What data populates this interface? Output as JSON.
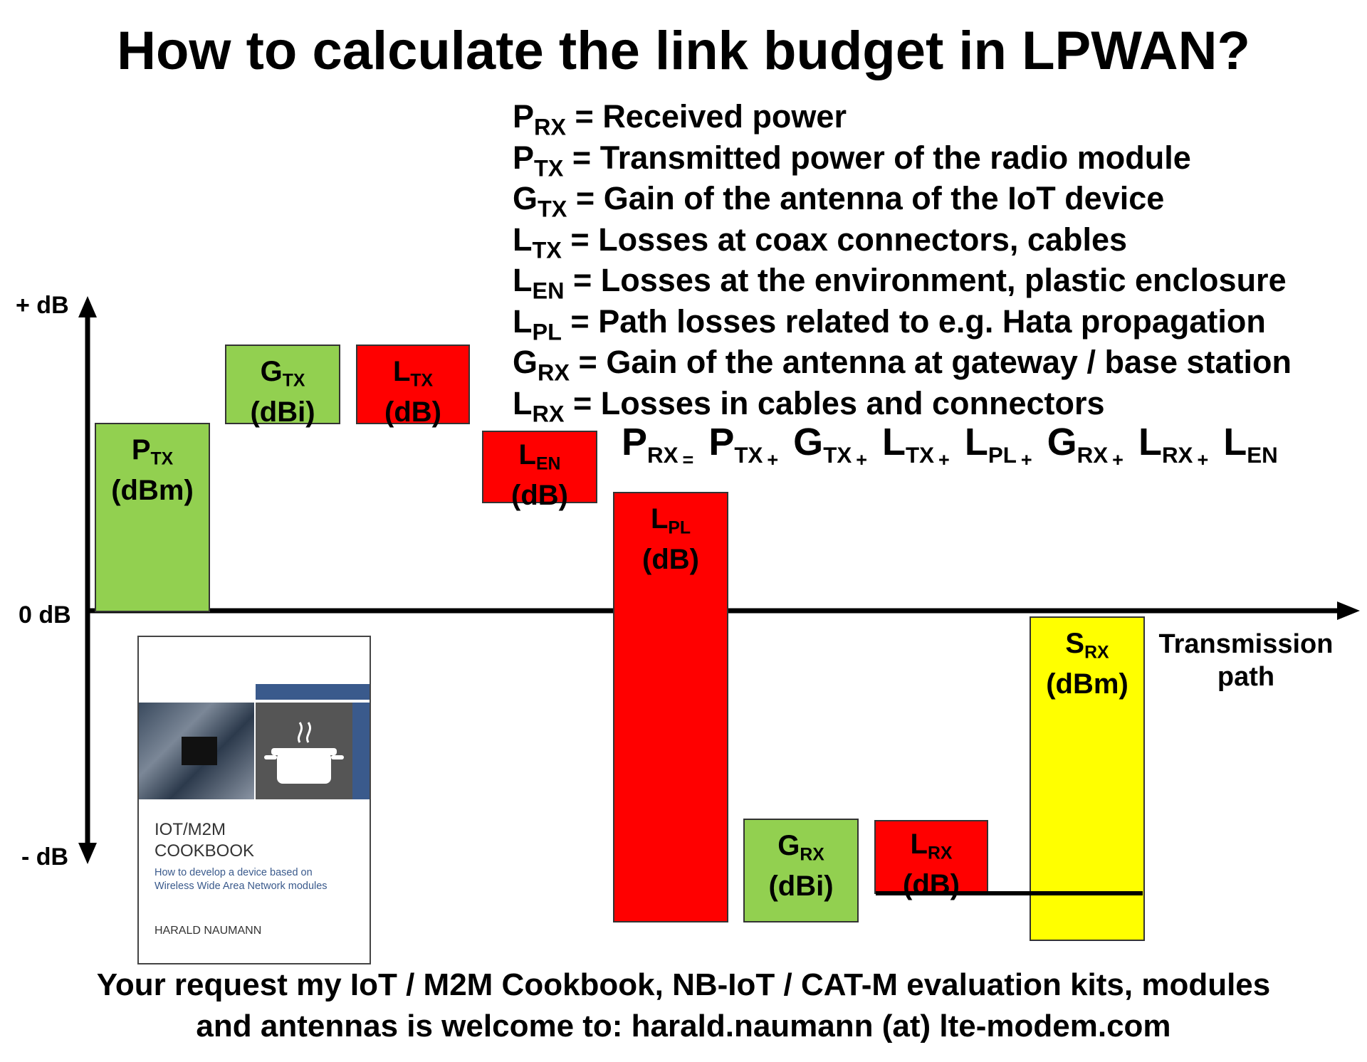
{
  "title": "How to calculate the link budget in LPWAN?",
  "definitions": [
    {
      "base": "P",
      "sub": "RX",
      "text": "= Received power"
    },
    {
      "base": "P",
      "sub": "TX",
      "text": "= Transmitted power of the radio module"
    },
    {
      "base": "G",
      "sub": "TX",
      "text": "= Gain of the antenna of the IoT device"
    },
    {
      "base": "L",
      "sub": "TX",
      "text": "= Losses at coax connectors, cables"
    },
    {
      "base": "L",
      "sub": "EN",
      "text": "= Losses at the environment, plastic enclosure"
    },
    {
      "base": "L",
      "sub": "PL",
      "text": "= Path losses related to e.g. Hata propagation"
    },
    {
      "base": "G",
      "sub": "RX",
      "text": "= Gain of the antenna at gateway / base station"
    },
    {
      "base": "L",
      "sub": "RX",
      "text": "= Losses in cables and connectors"
    }
  ],
  "formula": {
    "lhs": {
      "base": "P",
      "sub": "RX"
    },
    "eq": "=",
    "plus": "+",
    "terms": [
      {
        "base": "P",
        "sub": "TX"
      },
      {
        "base": "G",
        "sub": "TX"
      },
      {
        "base": "L",
        "sub": "TX"
      },
      {
        "base": "L",
        "sub": "PL"
      },
      {
        "base": "G",
        "sub": "RX"
      },
      {
        "base": "L",
        "sub": "RX"
      },
      {
        "base": "L",
        "sub": "EN"
      }
    ]
  },
  "axis": {
    "plus_label": "+ dB",
    "zero_label": "0 dB",
    "minus_label": "- dB",
    "x_label_line1": "Transmission",
    "x_label_line2": "path"
  },
  "blocks": {
    "ptx": {
      "base": "P",
      "sub": "TX",
      "unit": "(dBm)",
      "color": "#92d050"
    },
    "gtx": {
      "base": "G",
      "sub": "TX",
      "unit": "(dBi)",
      "color": "#92d050"
    },
    "ltx": {
      "base": "L",
      "sub": "TX",
      "unit": "(dB)",
      "color": "#ff0000"
    },
    "len": {
      "base": "L",
      "sub": "EN",
      "unit": "(dB)",
      "color": "#ff0000"
    },
    "lpl": {
      "base": "L",
      "sub": "PL",
      "unit": "(dB)",
      "color": "#ff0000"
    },
    "grx": {
      "base": "G",
      "sub": "RX",
      "unit": "(dBi)",
      "color": "#92d050"
    },
    "lrx": {
      "base": "L",
      "sub": "RX",
      "unit": "(dB)",
      "color": "#ff0000"
    },
    "srx": {
      "base": "S",
      "sub": "RX",
      "unit": "(dBm)",
      "color": "#ffff00"
    }
  },
  "book": {
    "title_line1": "IOT/M2M",
    "title_line2": "COOKBOOK",
    "subtitle_line1": "How to develop a device based on",
    "subtitle_line2": "Wireless Wide Area Network modules",
    "author": "HARALD NAUMANN"
  },
  "footer": {
    "line1": "Your request  my IoT / M2M Cookbook, NB-IoT / CAT-M evaluation kits, modules",
    "line2": "and antennas is welcome to: harald.naumann (at) lte-modem.com"
  }
}
